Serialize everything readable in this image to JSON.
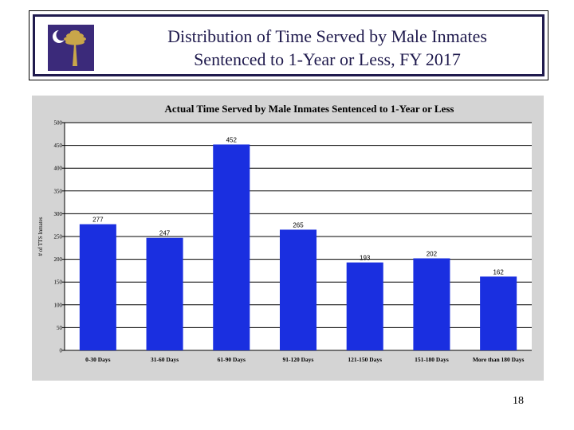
{
  "slide": {
    "title_line1": "Distribution of Time Served by Male Inmates",
    "title_line2": "Sentenced to 1-Year or Less, FY 2017",
    "page_number": "18",
    "logo_icon": "palmetto-crescent-flag-icon"
  },
  "colors": {
    "title": "#1f1a4d",
    "logo_bg": "#3b2a7a",
    "logo_palm": "#c9a64a",
    "bar": "#1a2fe0",
    "panel_bg": "#d4d4d4",
    "plot_bg": "#ffffff"
  },
  "chart_data": {
    "type": "bar",
    "title": "Actual Time Served by Male Inmates Sentenced to 1-Year or Less",
    "xlabel": "",
    "ylabel": "# of TTS Inmates",
    "categories": [
      "0-30 Days",
      "31-60 Days",
      "61-90 Days",
      "91-120 Days",
      "121-150 Days",
      "151-180 Days",
      "More than 180 Days"
    ],
    "values": [
      277,
      247,
      452,
      265,
      193,
      202,
      162
    ],
    "data_labels": [
      "277",
      "247",
      "452",
      "265",
      "193",
      "202",
      "162"
    ],
    "ylim": [
      0,
      500
    ],
    "yticks": [
      0,
      50,
      100,
      150,
      200,
      250,
      300,
      350,
      400,
      450,
      500
    ],
    "ytick_labels": [
      "0",
      "50",
      "100",
      "150",
      "200",
      "250",
      "300",
      "350",
      "400",
      "450",
      "500"
    ],
    "grid": true,
    "legend": "none"
  }
}
